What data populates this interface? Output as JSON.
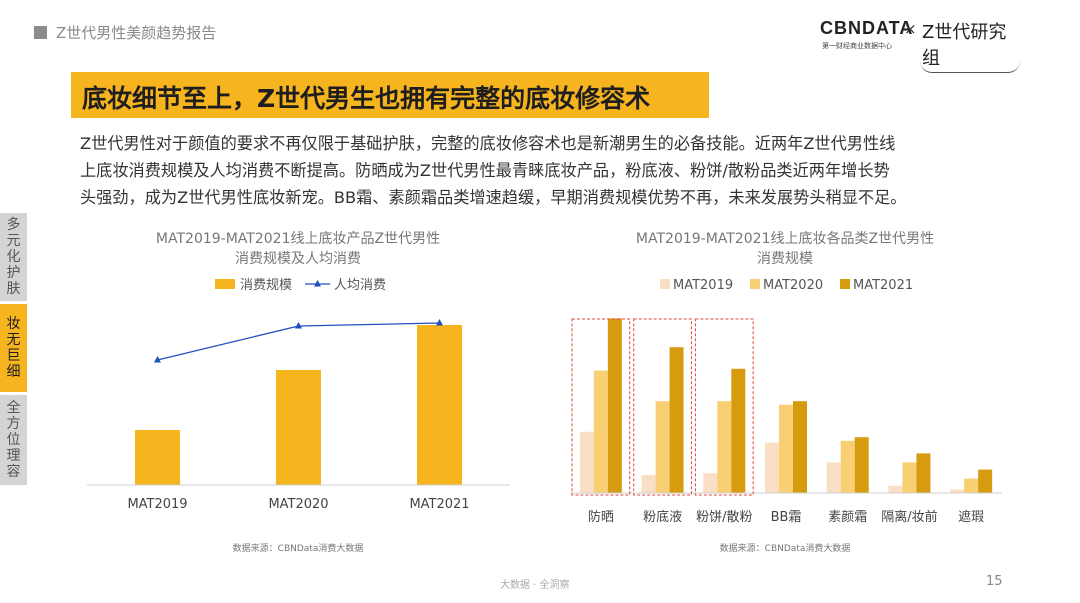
{
  "header": {
    "report_title": "Z世代男性美颜趋势报告",
    "logo_main": "CBNDATA",
    "logo_sub": "第一财经商业数据中心",
    "logo_times": "×",
    "logo_partner": "Z世代研究组"
  },
  "headline": "底妆细节至上，Z世代男生也拥有完整的底妆修容术",
  "paragraph_lines": [
    "Z世代男性对于颜值的要求不再仅限于基础护肤，完整的底妆修容术也是新潮男生的必备技能。近两年Z世代男性线",
    "上底妆消费规模及人均消费不断提高。防晒成为Z世代男性最青睐底妆产品，粉底液、粉饼/散粉品类近两年增长势",
    "头强劲，成为Z世代男性底妆新宠。BB霜、素颜霜品类增速趋缓，早期消费规模优势不再，未来发展势头稍显不足。"
  ],
  "side_tabs": [
    "多元化护肤",
    "妆无巨细",
    "全方位理容"
  ],
  "chart_data": [
    {
      "type": "bar",
      "title_lines": [
        "MAT2019-MAT2021线上底妆产品Z世代男性",
        "消费规模及人均消费"
      ],
      "categories": [
        "MAT2019",
        "MAT2020",
        "MAT2021"
      ],
      "series": [
        {
          "name": "消费规模",
          "kind": "bar",
          "values": [
            55,
            115,
            160
          ],
          "color": "#f6b41e"
        },
        {
          "name": "人均消费",
          "kind": "line",
          "values": [
            125,
            159,
            162
          ],
          "color": "#1f4fbf"
        }
      ],
      "ylim": [
        0,
        200
      ],
      "legend": "top",
      "grid": false,
      "source": "数据来源：CBNData消费大数据"
    },
    {
      "type": "bar",
      "title_lines": [
        "MAT2019-MAT2021线上底妆各品类Z世代男性",
        "消费规模"
      ],
      "categories": [
        "防晒",
        "粉底液",
        "粉饼/散粉",
        "BB霜",
        "素颜霜",
        "隔离/妆前",
        "遮瑕"
      ],
      "series": [
        {
          "name": "MAT2019",
          "values": [
            34,
            10,
            11,
            28,
            17,
            4,
            2
          ],
          "color": "#f8dfc6"
        },
        {
          "name": "MAT2020",
          "values": [
            68,
            51,
            51,
            49,
            29,
            17,
            8
          ],
          "color": "#f9cf73"
        },
        {
          "name": "MAT2021",
          "values": [
            97,
            81,
            69,
            51,
            31,
            22,
            13
          ],
          "color": "#d69b0e"
        }
      ],
      "highlighted_categories": [
        "防晒",
        "粉底液",
        "粉饼/散粉"
      ],
      "highlight_color": "#e0463a",
      "ylim": [
        0,
        100
      ],
      "legend": "top",
      "grid": false,
      "source": "数据来源：CBNData消费大数据"
    }
  ],
  "footer": {
    "tagline": "大数据 · 全洞察",
    "page_number": "15"
  }
}
